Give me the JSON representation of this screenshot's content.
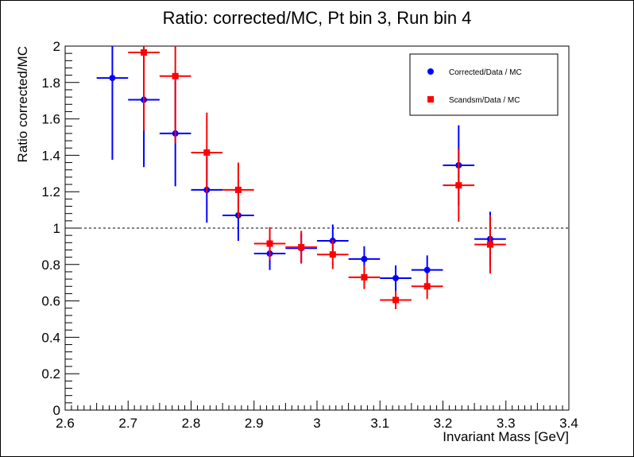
{
  "chart_data": {
    "type": "scatter",
    "title": "Ratio: corrected/MC, Pt bin 3, Run bin 4",
    "xlabel": "Invariant Mass [GeV]",
    "ylabel": "Ratio corrected/MC",
    "xlim": [
      2.6,
      3.4
    ],
    "ylim": [
      0,
      2
    ],
    "x_ticks": [
      "2.6",
      "2.7",
      "2.8",
      "2.9",
      "3",
      "3.1",
      "3.2",
      "3.3",
      "3.4"
    ],
    "y_ticks": [
      "0",
      "0.2",
      "0.4",
      "0.6",
      "0.8",
      "1",
      "1.2",
      "1.4",
      "1.6",
      "1.8",
      "2"
    ],
    "reference_line": {
      "y": 1,
      "style": "dashed"
    },
    "legend_position": "top-right",
    "series": [
      {
        "name": "Corrected/Data / MC",
        "color": "#0000ff",
        "marker": "circle",
        "points": [
          {
            "x": 2.675,
            "y": 1.825,
            "xerr": 0.025,
            "yerr": 0.45
          },
          {
            "x": 2.725,
            "y": 1.705,
            "xerr": 0.025,
            "yerr": 0.37
          },
          {
            "x": 2.775,
            "y": 1.52,
            "xerr": 0.025,
            "yerr": 0.29
          },
          {
            "x": 2.825,
            "y": 1.21,
            "xerr": 0.025,
            "yerr": 0.18
          },
          {
            "x": 2.875,
            "y": 1.07,
            "xerr": 0.025,
            "yerr": 0.14
          },
          {
            "x": 2.925,
            "y": 0.86,
            "xerr": 0.025,
            "yerr": 0.09
          },
          {
            "x": 2.975,
            "y": 0.89,
            "xerr": 0.025,
            "yerr": 0.08
          },
          {
            "x": 3.025,
            "y": 0.93,
            "xerr": 0.025,
            "yerr": 0.09
          },
          {
            "x": 3.075,
            "y": 0.83,
            "xerr": 0.025,
            "yerr": 0.07
          },
          {
            "x": 3.125,
            "y": 0.725,
            "xerr": 0.025,
            "yerr": 0.07
          },
          {
            "x": 3.175,
            "y": 0.77,
            "xerr": 0.025,
            "yerr": 0.08
          },
          {
            "x": 3.225,
            "y": 1.345,
            "xerr": 0.025,
            "yerr": 0.22
          },
          {
            "x": 3.275,
            "y": 0.94,
            "xerr": 0.025,
            "yerr": 0.15
          }
        ]
      },
      {
        "name": "Scandsm/Data / MC",
        "color": "#ff0000",
        "marker": "square",
        "points": [
          {
            "x": 2.725,
            "y": 1.965,
            "xerr": 0.025,
            "yerr": 0.43
          },
          {
            "x": 2.775,
            "y": 1.835,
            "xerr": 0.025,
            "yerr": 0.37
          },
          {
            "x": 2.825,
            "y": 1.415,
            "xerr": 0.025,
            "yerr": 0.22
          },
          {
            "x": 2.875,
            "y": 1.21,
            "xerr": 0.025,
            "yerr": 0.15
          },
          {
            "x": 2.925,
            "y": 0.915,
            "xerr": 0.025,
            "yerr": 0.09
          },
          {
            "x": 2.975,
            "y": 0.895,
            "xerr": 0.025,
            "yerr": 0.09
          },
          {
            "x": 3.025,
            "y": 0.855,
            "xerr": 0.025,
            "yerr": 0.08
          },
          {
            "x": 3.075,
            "y": 0.73,
            "xerr": 0.025,
            "yerr": 0.065
          },
          {
            "x": 3.125,
            "y": 0.605,
            "xerr": 0.025,
            "yerr": 0.05
          },
          {
            "x": 3.175,
            "y": 0.68,
            "xerr": 0.025,
            "yerr": 0.07
          },
          {
            "x": 3.225,
            "y": 1.235,
            "xerr": 0.025,
            "yerr": 0.2
          },
          {
            "x": 3.275,
            "y": 0.91,
            "xerr": 0.025,
            "yerr": 0.16
          }
        ]
      }
    ]
  }
}
